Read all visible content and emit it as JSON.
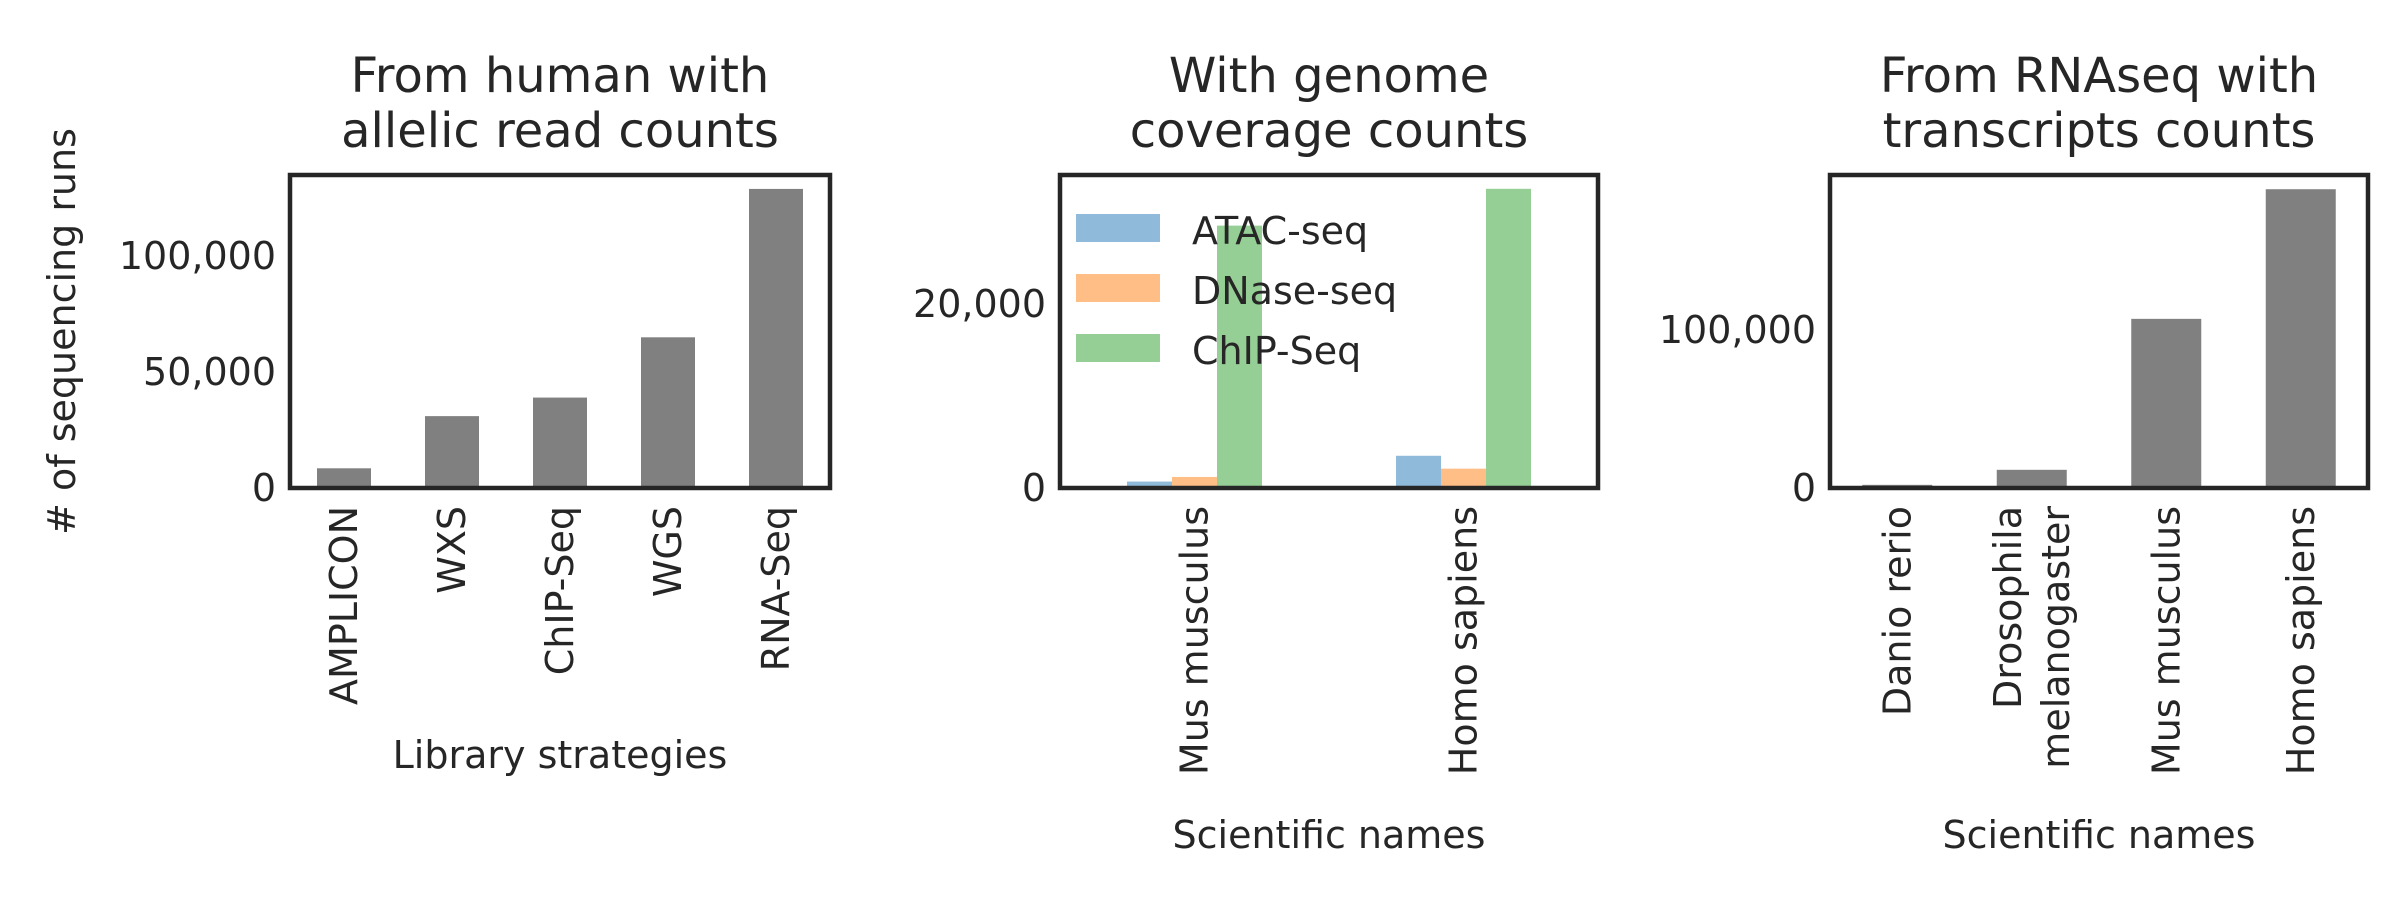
{
  "chart_data": [
    {
      "type": "bar",
      "title": [
        "From human with",
        "allelic read counts"
      ],
      "ylabel": "# of sequencing runs",
      "xlabel": "Library strategies",
      "categories": [
        [
          "AMPLICON"
        ],
        [
          "WXS"
        ],
        [
          "ChIP-Seq"
        ],
        [
          "WGS"
        ],
        [
          "RNA-Seq"
        ]
      ],
      "series": [
        {
          "values": [
            8500,
            31000,
            39000,
            65000,
            129000
          ],
          "color": "#808080"
        }
      ],
      "yticks": [
        0,
        50000,
        100000
      ],
      "ytick_labels": [
        "0",
        "50,000",
        "100,000"
      ],
      "ylim": [
        0,
        135000
      ],
      "grid": false
    },
    {
      "type": "bar",
      "title": [
        "With genome",
        "coverage counts"
      ],
      "ylabel": "",
      "xlabel": "Scientific names",
      "categories": [
        [
          "Mus musculus"
        ],
        [
          "Homo sapiens"
        ]
      ],
      "series": [
        {
          "name": "ATAC-seq",
          "values": [
            700,
            3500
          ],
          "color": "#8fbad9"
        },
        {
          "name": "DNase-seq",
          "values": [
            1200,
            2100
          ],
          "color": "#ffbe86"
        },
        {
          "name": "ChIP-Seq",
          "values": [
            28500,
            32500
          ],
          "color": "#95cf95"
        }
      ],
      "yticks": [
        0,
        20000
      ],
      "ytick_labels": [
        "0",
        "20,000"
      ],
      "ylim": [
        0,
        34000
      ],
      "legend": "top-left",
      "grid": false
    },
    {
      "type": "bar",
      "title": [
        "From RNAseq with",
        "transcripts counts"
      ],
      "ylabel": "",
      "xlabel": "Scientific names",
      "categories": [
        [
          "Danio rerio"
        ],
        [
          "Drosophila",
          "melanogaster"
        ],
        [
          "Mus musculus"
        ],
        [
          "Homo sapiens"
        ]
      ],
      "series": [
        {
          "values": [
            2000,
            11500,
            107000,
            189000
          ],
          "color": "#808080"
        }
      ],
      "yticks": [
        0,
        100000
      ],
      "ytick_labels": [
        "0",
        "100,000"
      ],
      "ylim": [
        0,
        198000
      ],
      "grid": false
    }
  ]
}
